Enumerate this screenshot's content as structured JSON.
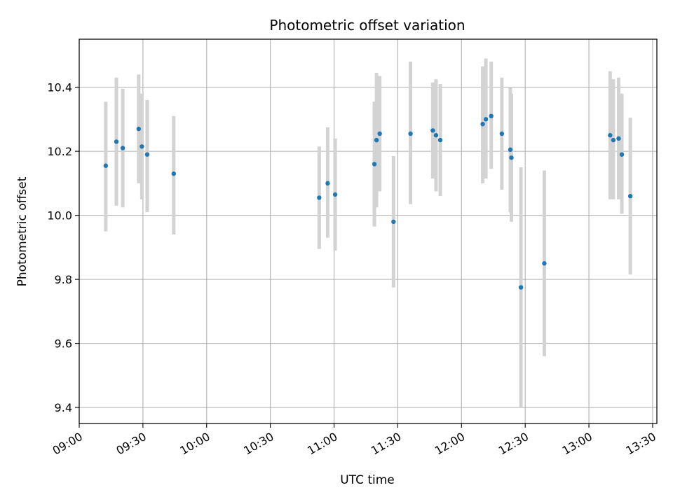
{
  "chart_data": {
    "type": "scatter",
    "title": "Photometric offset variation",
    "xlabel": "UTC time",
    "ylabel": "Photometric offset",
    "xlim": [
      "09:00",
      "13:32"
    ],
    "ylim": [
      9.35,
      10.55
    ],
    "x_ticks": [
      "09:00",
      "09:30",
      "10:00",
      "10:30",
      "11:00",
      "11:30",
      "12:00",
      "12:30",
      "13:00",
      "13:30"
    ],
    "y_ticks": [
      "9.4",
      "9.6",
      "9.8",
      "10.0",
      "10.2",
      "10.4"
    ],
    "grid": true,
    "colors": {
      "point": "#1f77b4",
      "errorbar": "#d3d3d3",
      "grid": "#b0b0b0"
    },
    "series": [
      {
        "points": [
          {
            "x": "09:12:30",
            "y": 10.155,
            "lo": 9.95,
            "hi": 10.355
          },
          {
            "x": "09:17:30",
            "y": 10.23,
            "lo": 10.03,
            "hi": 10.43
          },
          {
            "x": "09:20:30",
            "y": 10.21,
            "lo": 10.025,
            "hi": 10.395
          },
          {
            "x": "09:28:00",
            "y": 10.27,
            "lo": 10.1,
            "hi": 10.44
          },
          {
            "x": "09:29:30",
            "y": 10.215,
            "lo": 10.05,
            "hi": 10.38
          },
          {
            "x": "09:32:00",
            "y": 10.19,
            "lo": 10.01,
            "hi": 10.36
          },
          {
            "x": "09:44:30",
            "y": 10.13,
            "lo": 9.94,
            "hi": 10.31
          },
          {
            "x": "10:53:00",
            "y": 10.055,
            "lo": 9.895,
            "hi": 10.215
          },
          {
            "x": "10:57:00",
            "y": 10.1,
            "lo": 9.93,
            "hi": 10.275
          },
          {
            "x": "11:00:30",
            "y": 10.065,
            "lo": 9.89,
            "hi": 10.24
          },
          {
            "x": "11:19:00",
            "y": 10.16,
            "lo": 9.965,
            "hi": 10.355
          },
          {
            "x": "11:20:00",
            "y": 10.235,
            "lo": 10.025,
            "hi": 10.445
          },
          {
            "x": "11:21:30",
            "y": 10.255,
            "lo": 10.075,
            "hi": 10.435
          },
          {
            "x": "11:28:00",
            "y": 9.98,
            "lo": 9.775,
            "hi": 10.185
          },
          {
            "x": "11:36:00",
            "y": 10.255,
            "lo": 10.035,
            "hi": 10.48
          },
          {
            "x": "11:46:30",
            "y": 10.265,
            "lo": 10.115,
            "hi": 10.415
          },
          {
            "x": "11:48:00",
            "y": 10.25,
            "lo": 10.075,
            "hi": 10.425
          },
          {
            "x": "11:50:00",
            "y": 10.235,
            "lo": 10.06,
            "hi": 10.41
          },
          {
            "x": "12:10:00",
            "y": 10.285,
            "lo": 10.1,
            "hi": 10.465
          },
          {
            "x": "12:11:30",
            "y": 10.3,
            "lo": 10.115,
            "hi": 10.49
          },
          {
            "x": "12:14:00",
            "y": 10.31,
            "lo": 10.145,
            "hi": 10.48
          },
          {
            "x": "12:19:00",
            "y": 10.255,
            "lo": 10.08,
            "hi": 10.43
          },
          {
            "x": "12:23:00",
            "y": 10.205,
            "lo": 10.01,
            "hi": 10.4
          },
          {
            "x": "12:23:30",
            "y": 10.18,
            "lo": 9.98,
            "hi": 10.38
          },
          {
            "x": "12:28:00",
            "y": 9.775,
            "lo": 9.4,
            "hi": 10.15
          },
          {
            "x": "12:39:00",
            "y": 9.85,
            "lo": 9.56,
            "hi": 10.14
          },
          {
            "x": "13:10:00",
            "y": 10.25,
            "lo": 10.05,
            "hi": 10.45
          },
          {
            "x": "13:11:30",
            "y": 10.235,
            "lo": 10.05,
            "hi": 10.425
          },
          {
            "x": "13:14:00",
            "y": 10.24,
            "lo": 10.05,
            "hi": 10.43
          },
          {
            "x": "13:15:30",
            "y": 10.19,
            "lo": 10.005,
            "hi": 10.38
          },
          {
            "x": "13:19:30",
            "y": 10.06,
            "lo": 9.815,
            "hi": 10.305
          }
        ]
      }
    ]
  }
}
